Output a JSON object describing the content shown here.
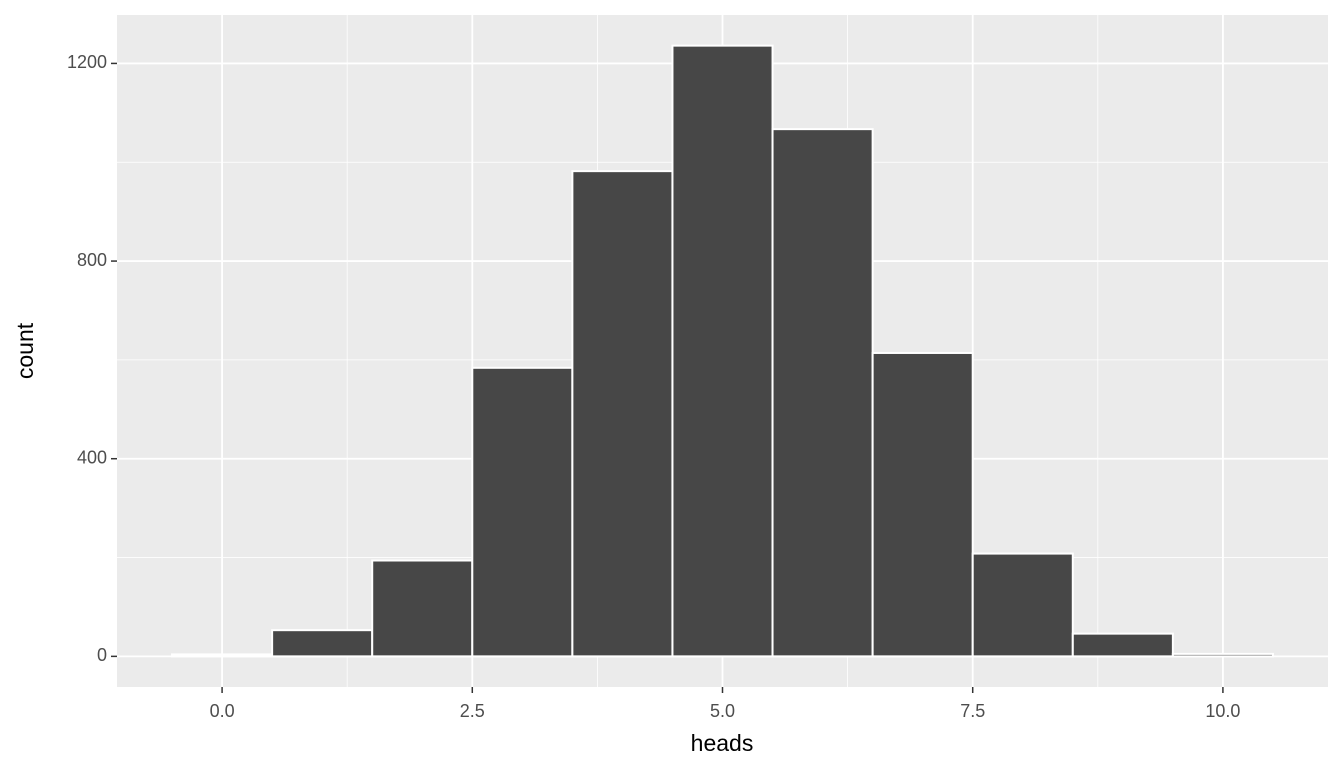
{
  "chart_data": {
    "type": "histogram",
    "x_label": "heads",
    "y_label": "count",
    "bins": [
      -0.5,
      0.5,
      1.5,
      2.5,
      3.5,
      4.5,
      5.5,
      6.5,
      7.5,
      8.5,
      9.5,
      10.5
    ],
    "values": [
      4,
      53,
      194,
      584,
      982,
      1236,
      1067,
      614,
      208,
      46,
      5
    ],
    "color": "#474747",
    "edge_color": "#ffffff",
    "panel_color": "#ebebeb",
    "xlim": [
      -1.05,
      11.05
    ],
    "ylim": [
      -62,
      1298
    ],
    "xticks": [
      {
        "value": 0,
        "label": "0.0"
      },
      2.5,
      {
        "value": 5,
        "label": "5.0"
      },
      7.5,
      {
        "value": 10,
        "label": "10.0"
      }
    ],
    "yticks": [
      0,
      400,
      800,
      1200
    ],
    "x_minor_grid": [
      1.25,
      3.75,
      6.25,
      8.75
    ],
    "y_minor_grid": [
      200,
      600,
      1000
    ],
    "grid": true
  }
}
